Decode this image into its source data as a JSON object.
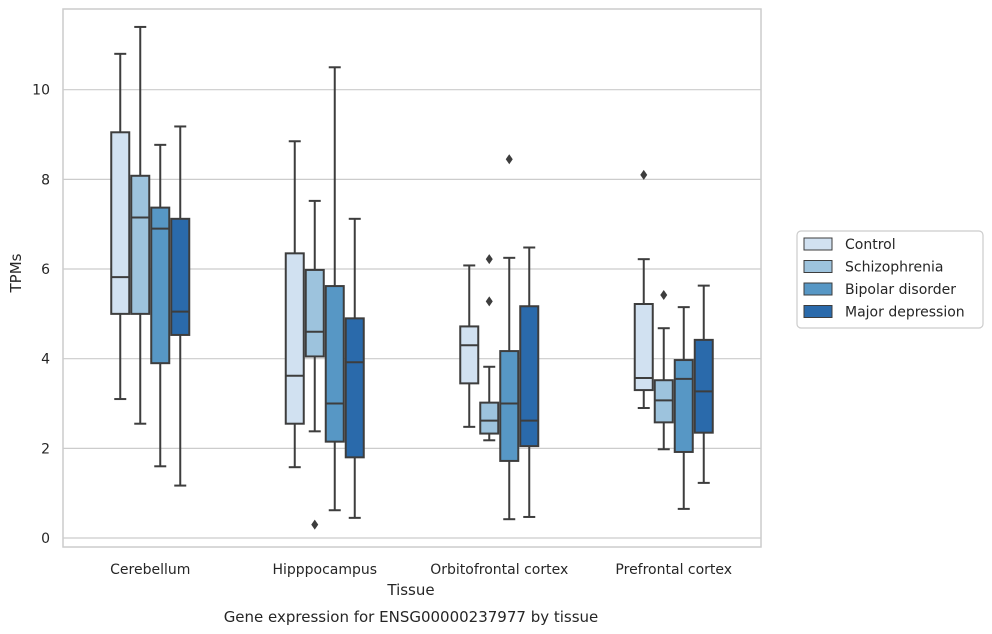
{
  "chart_data": {
    "type": "box",
    "title": "",
    "caption": "Gene expression for ENSG00000237977 by tissue",
    "xlabel": "Tissue",
    "ylabel": "TPMs",
    "ylim": [
      -0.2,
      11.8
    ],
    "yticks": [
      0,
      2,
      4,
      6,
      8,
      10
    ],
    "grid": true,
    "legend_position": "right",
    "categories": [
      "Cerebellum",
      "Hipppocampus",
      "Orbitofrontal cortex",
      "Prefrontal cortex"
    ],
    "series": [
      {
        "name": "Control",
        "color": "#d1e1f1",
        "boxes": [
          {
            "whislo": 3.1,
            "q1": 5.0,
            "med": 5.82,
            "q3": 9.05,
            "whishi": 10.8,
            "fliers": []
          },
          {
            "whislo": 1.58,
            "q1": 2.55,
            "med": 3.62,
            "q3": 6.35,
            "whishi": 8.85,
            "fliers": []
          },
          {
            "whislo": 2.48,
            "q1": 3.45,
            "med": 4.3,
            "q3": 4.72,
            "whishi": 6.08,
            "fliers": []
          },
          {
            "whislo": 2.9,
            "q1": 3.3,
            "med": 3.57,
            "q3": 5.22,
            "whishi": 6.22,
            "fliers": [
              8.1
            ]
          }
        ]
      },
      {
        "name": "Schizophrenia",
        "color": "#9dc3dd",
        "boxes": [
          {
            "whislo": 2.55,
            "q1": 5.0,
            "med": 7.15,
            "q3": 8.08,
            "whishi": 11.4,
            "fliers": []
          },
          {
            "whislo": 2.38,
            "q1": 4.05,
            "med": 4.6,
            "q3": 5.98,
            "whishi": 7.52,
            "fliers": [
              0.3
            ]
          },
          {
            "whislo": 2.18,
            "q1": 2.33,
            "med": 2.62,
            "q3": 3.02,
            "whishi": 3.82,
            "fliers": [
              5.28,
              6.22
            ]
          },
          {
            "whislo": 1.98,
            "q1": 2.58,
            "med": 3.07,
            "q3": 3.52,
            "whishi": 4.68,
            "fliers": [
              5.42
            ]
          }
        ]
      },
      {
        "name": "Bipolar disorder",
        "color": "#5797c5",
        "boxes": [
          {
            "whislo": 1.6,
            "q1": 3.9,
            "med": 6.9,
            "q3": 7.37,
            "whishi": 8.77,
            "fliers": []
          },
          {
            "whislo": 0.62,
            "q1": 2.15,
            "med": 3.0,
            "q3": 5.62,
            "whishi": 10.5,
            "fliers": []
          },
          {
            "whislo": 0.42,
            "q1": 1.72,
            "med": 3.0,
            "q3": 4.17,
            "whishi": 6.25,
            "fliers": [
              8.45
            ]
          },
          {
            "whislo": 0.65,
            "q1": 1.92,
            "med": 3.55,
            "q3": 3.97,
            "whishi": 5.15,
            "fliers": []
          }
        ]
      },
      {
        "name": "Major depression",
        "color": "#2a6aab",
        "boxes": [
          {
            "whislo": 1.17,
            "q1": 4.53,
            "med": 5.05,
            "q3": 7.12,
            "whishi": 9.18,
            "fliers": []
          },
          {
            "whislo": 0.45,
            "q1": 1.8,
            "med": 3.92,
            "q3": 4.9,
            "whishi": 7.12,
            "fliers": []
          },
          {
            "whislo": 0.47,
            "q1": 2.05,
            "med": 2.62,
            "q3": 5.17,
            "whishi": 6.48,
            "fliers": []
          },
          {
            "whislo": 1.23,
            "q1": 2.35,
            "med": 3.27,
            "q3": 4.42,
            "whishi": 5.63,
            "fliers": []
          }
        ]
      }
    ]
  }
}
